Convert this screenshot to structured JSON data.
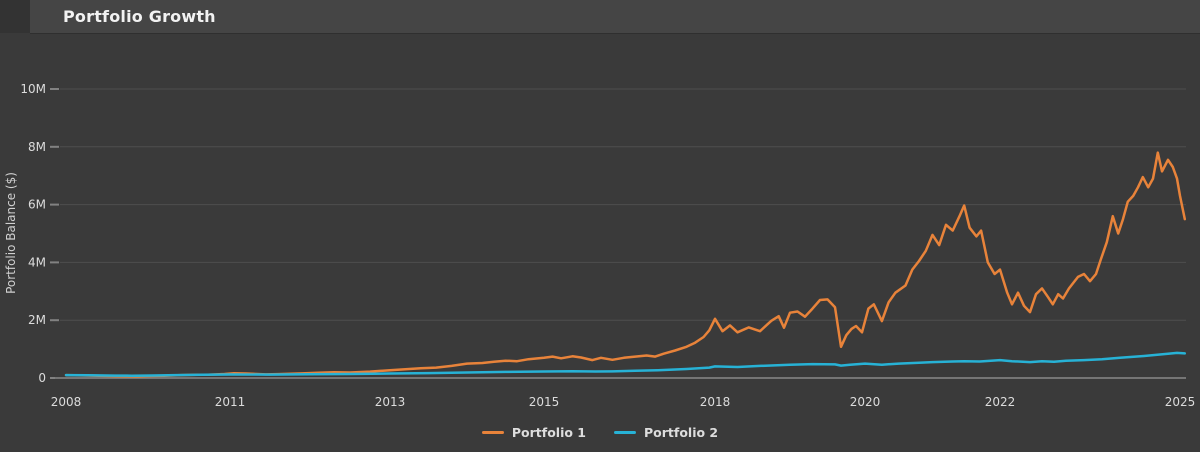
{
  "header": {
    "title": "Portfolio Growth"
  },
  "chart_data": {
    "type": "line",
    "title": "Portfolio Growth",
    "xlabel": "",
    "ylabel": "Portfolio Balance ($)",
    "y_unit": "USD, series values in millions",
    "x_unit": "year (decimal)",
    "ylim": [
      0,
      10000000
    ],
    "grid": true,
    "legend_position": "bottom-center",
    "background_color": "#3a3a3a",
    "yticks": [
      {
        "label": "0",
        "value_millions": 0
      },
      {
        "label": "2M",
        "value_millions": 2
      },
      {
        "label": "4M",
        "value_millions": 4
      },
      {
        "label": "6M",
        "value_millions": 6
      },
      {
        "label": "8M",
        "value_millions": 8
      },
      {
        "label": "10M",
        "value_millions": 10
      }
    ],
    "xticks": [
      "2008",
      "2011",
      "2013",
      "2015",
      "2018",
      "2020",
      "2022",
      "2025"
    ],
    "series": [
      {
        "name": "Portfolio 1",
        "color": "#E8833A",
        "points": [
          [
            2008.0,
            0.1
          ],
          [
            2008.3,
            0.09
          ],
          [
            2008.6,
            0.075
          ],
          [
            2008.9,
            0.06
          ],
          [
            2009.1,
            0.055
          ],
          [
            2009.3,
            0.052
          ],
          [
            2009.5,
            0.065
          ],
          [
            2009.8,
            0.08
          ],
          [
            2010.1,
            0.1
          ],
          [
            2010.4,
            0.115
          ],
          [
            2010.6,
            0.11
          ],
          [
            2010.9,
            0.14
          ],
          [
            2011.05,
            0.165
          ],
          [
            2011.2,
            0.155
          ],
          [
            2011.45,
            0.125
          ],
          [
            2011.6,
            0.135
          ],
          [
            2011.9,
            0.16
          ],
          [
            2012.1,
            0.185
          ],
          [
            2012.3,
            0.2
          ],
          [
            2012.5,
            0.19
          ],
          [
            2012.75,
            0.22
          ],
          [
            2013.0,
            0.27
          ],
          [
            2013.2,
            0.3
          ],
          [
            2013.4,
            0.335
          ],
          [
            2013.6,
            0.36
          ],
          [
            2013.8,
            0.42
          ],
          [
            2014.0,
            0.5
          ],
          [
            2014.2,
            0.52
          ],
          [
            2014.35,
            0.56
          ],
          [
            2014.5,
            0.6
          ],
          [
            2014.65,
            0.58
          ],
          [
            2014.8,
            0.65
          ],
          [
            2015.0,
            0.7
          ],
          [
            2015.15,
            0.74
          ],
          [
            2015.3,
            0.68
          ],
          [
            2015.5,
            0.75
          ],
          [
            2015.65,
            0.71
          ],
          [
            2015.85,
            0.62
          ],
          [
            2016.0,
            0.7
          ],
          [
            2016.2,
            0.63
          ],
          [
            2016.4,
            0.7
          ],
          [
            2016.6,
            0.74
          ],
          [
            2016.8,
            0.78
          ],
          [
            2016.95,
            0.74
          ],
          [
            2017.1,
            0.84
          ],
          [
            2017.3,
            0.95
          ],
          [
            2017.5,
            1.08
          ],
          [
            2017.65,
            1.22
          ],
          [
            2017.8,
            1.42
          ],
          [
            2017.9,
            1.65
          ],
          [
            2018.0,
            2.05
          ],
          [
            2018.1,
            1.62
          ],
          [
            2018.2,
            1.82
          ],
          [
            2018.3,
            1.58
          ],
          [
            2018.45,
            1.75
          ],
          [
            2018.6,
            1.62
          ],
          [
            2018.75,
            1.98
          ],
          [
            2018.85,
            2.14
          ],
          [
            2018.92,
            1.74
          ],
          [
            2019.0,
            2.26
          ],
          [
            2019.1,
            2.3
          ],
          [
            2019.2,
            2.12
          ],
          [
            2019.3,
            2.4
          ],
          [
            2019.4,
            2.7
          ],
          [
            2019.5,
            2.72
          ],
          [
            2019.6,
            2.45
          ],
          [
            2019.68,
            1.08
          ],
          [
            2019.75,
            1.48
          ],
          [
            2019.82,
            1.7
          ],
          [
            2019.88,
            1.8
          ],
          [
            2019.96,
            1.58
          ],
          [
            2020.05,
            2.4
          ],
          [
            2020.13,
            2.55
          ],
          [
            2020.25,
            1.97
          ],
          [
            2020.35,
            2.62
          ],
          [
            2020.45,
            2.95
          ],
          [
            2020.6,
            3.2
          ],
          [
            2020.7,
            3.75
          ],
          [
            2020.8,
            4.05
          ],
          [
            2020.9,
            4.4
          ],
          [
            2021.0,
            4.95
          ],
          [
            2021.1,
            4.6
          ],
          [
            2021.2,
            5.3
          ],
          [
            2021.3,
            5.1
          ],
          [
            2021.4,
            5.6
          ],
          [
            2021.47,
            5.97
          ],
          [
            2021.55,
            5.2
          ],
          [
            2021.65,
            4.9
          ],
          [
            2021.72,
            5.1
          ],
          [
            2021.82,
            4.0
          ],
          [
            2021.92,
            3.6
          ],
          [
            2022.0,
            3.75
          ],
          [
            2022.12,
            2.95
          ],
          [
            2022.2,
            2.55
          ],
          [
            2022.3,
            2.95
          ],
          [
            2022.4,
            2.5
          ],
          [
            2022.5,
            2.28
          ],
          [
            2022.6,
            2.9
          ],
          [
            2022.7,
            3.1
          ],
          [
            2022.8,
            2.8
          ],
          [
            2022.88,
            2.55
          ],
          [
            2022.97,
            2.9
          ],
          [
            2023.05,
            2.75
          ],
          [
            2023.15,
            3.1
          ],
          [
            2023.3,
            3.5
          ],
          [
            2023.4,
            3.6
          ],
          [
            2023.5,
            3.35
          ],
          [
            2023.6,
            3.6
          ],
          [
            2023.68,
            4.1
          ],
          [
            2023.78,
            4.7
          ],
          [
            2023.88,
            5.6
          ],
          [
            2023.97,
            5.0
          ],
          [
            2024.05,
            5.5
          ],
          [
            2024.13,
            6.1
          ],
          [
            2024.22,
            6.3
          ],
          [
            2024.3,
            6.6
          ],
          [
            2024.38,
            6.95
          ],
          [
            2024.47,
            6.6
          ],
          [
            2024.55,
            6.9
          ],
          [
            2024.63,
            7.8
          ],
          [
            2024.7,
            7.15
          ],
          [
            2024.8,
            7.55
          ],
          [
            2024.88,
            7.3
          ],
          [
            2024.95,
            6.9
          ],
          [
            2025.0,
            6.3
          ],
          [
            2025.08,
            5.5
          ]
        ]
      },
      {
        "name": "Portfolio 2",
        "color": "#27B2D6",
        "points": [
          [
            2008.0,
            0.1
          ],
          [
            2008.4,
            0.092
          ],
          [
            2008.9,
            0.082
          ],
          [
            2009.2,
            0.08
          ],
          [
            2009.6,
            0.088
          ],
          [
            2010.0,
            0.1
          ],
          [
            2010.5,
            0.11
          ],
          [
            2011.0,
            0.122
          ],
          [
            2011.5,
            0.118
          ],
          [
            2012.0,
            0.13
          ],
          [
            2012.5,
            0.138
          ],
          [
            2013.0,
            0.155
          ],
          [
            2013.5,
            0.17
          ],
          [
            2014.0,
            0.19
          ],
          [
            2014.5,
            0.21
          ],
          [
            2015.0,
            0.225
          ],
          [
            2015.5,
            0.235
          ],
          [
            2015.9,
            0.225
          ],
          [
            2016.2,
            0.23
          ],
          [
            2016.6,
            0.25
          ],
          [
            2017.0,
            0.27
          ],
          [
            2017.5,
            0.31
          ],
          [
            2017.9,
            0.36
          ],
          [
            2018.0,
            0.4
          ],
          [
            2018.3,
            0.38
          ],
          [
            2018.6,
            0.42
          ],
          [
            2019.0,
            0.46
          ],
          [
            2019.3,
            0.48
          ],
          [
            2019.6,
            0.47
          ],
          [
            2019.68,
            0.43
          ],
          [
            2019.8,
            0.46
          ],
          [
            2020.0,
            0.5
          ],
          [
            2020.25,
            0.46
          ],
          [
            2020.5,
            0.5
          ],
          [
            2020.8,
            0.53
          ],
          [
            2021.0,
            0.55
          ],
          [
            2021.3,
            0.57
          ],
          [
            2021.47,
            0.58
          ],
          [
            2021.7,
            0.57
          ],
          [
            2022.0,
            0.62
          ],
          [
            2022.2,
            0.58
          ],
          [
            2022.5,
            0.55
          ],
          [
            2022.7,
            0.58
          ],
          [
            2022.9,
            0.56
          ],
          [
            2023.1,
            0.6
          ],
          [
            2023.4,
            0.62
          ],
          [
            2023.7,
            0.65
          ],
          [
            2024.0,
            0.7
          ],
          [
            2024.2,
            0.73
          ],
          [
            2024.4,
            0.76
          ],
          [
            2024.6,
            0.8
          ],
          [
            2024.8,
            0.84
          ],
          [
            2024.95,
            0.87
          ],
          [
            2025.08,
            0.85
          ]
        ]
      }
    ]
  }
}
